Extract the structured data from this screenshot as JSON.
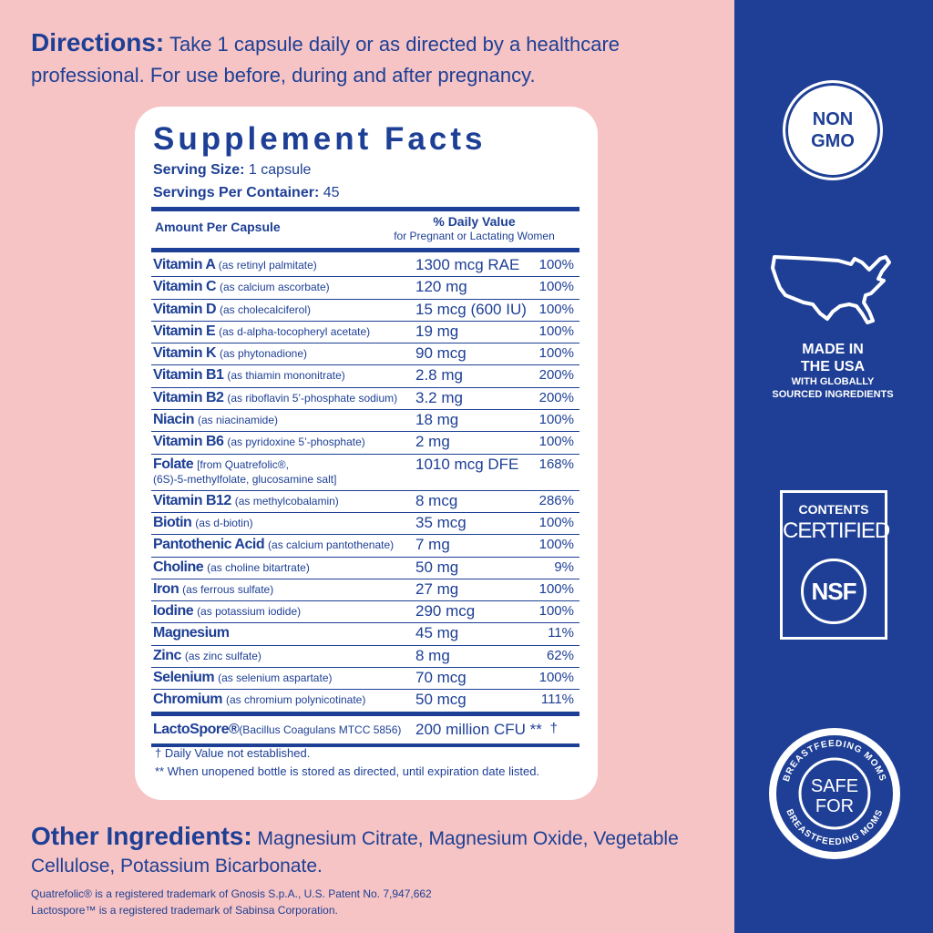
{
  "directions": {
    "heading": "Directions:",
    "text": " Take 1 capsule daily or as directed by a healthcare professional. For use before, during and after pregnancy."
  },
  "facts": {
    "title": "Supplement Facts",
    "serving_size_label": "Serving Size:",
    "serving_size_value": " 1 capsule",
    "servings_label": "Servings Per Container:",
    "servings_value": " 45",
    "amount_header": "Amount Per Capsule",
    "dv_header": "% Daily Value",
    "dv_subheader": "for Pregnant or Lactating Women",
    "rows": [
      {
        "name": "Vitamin A",
        "source": "(as retinyl palmitate)",
        "amount": "1300 mcg RAE",
        "dv": "100%"
      },
      {
        "name": "Vitamin C",
        "source": "(as calcium ascorbate)",
        "amount": "120 mg",
        "dv": "100%"
      },
      {
        "name": "Vitamin D",
        "source": "(as cholecalciferol)",
        "amount": "15 mcg (600 IU)",
        "dv": "100%"
      },
      {
        "name": "Vitamin E",
        "source": "(as d-alpha-tocopheryl acetate)",
        "amount": "19 mg",
        "dv": "100%"
      },
      {
        "name": "Vitamin K",
        "source": "(as phytonadione)",
        "amount": "90 mcg",
        "dv": "100%"
      },
      {
        "name": "Vitamin B1",
        "source": "(as thiamin mononitrate)",
        "amount": "2.8 mg",
        "dv": "200%"
      },
      {
        "name": "Vitamin B2",
        "source": "(as riboflavin 5’-phosphate sodium)",
        "amount": "3.2 mg",
        "dv": "200%"
      },
      {
        "name": "Niacin",
        "source": "(as niacinamide)",
        "amount": "18 mg",
        "dv": "100%"
      },
      {
        "name": "Vitamin B6",
        "source": "(as pyridoxine 5’-phosphate)",
        "amount": "2 mg",
        "dv": "100%"
      },
      {
        "name": "Folate",
        "source": "[from Quatrefolic®,",
        "source2": "(6S)-5-methylfolate, glucosamine salt]",
        "amount": "1010 mcg DFE",
        "dv": "168%"
      },
      {
        "name": "Vitamin B12",
        "source": "(as methylcobalamin)",
        "amount": "8 mcg",
        "dv": "286%"
      },
      {
        "name": "Biotin",
        "source": "(as d-biotin)",
        "amount": "35 mcg",
        "dv": "100%"
      },
      {
        "name": "Pantothenic Acid",
        "source": "(as calcium pantothenate)",
        "amount": "7 mg",
        "dv": "100%"
      },
      {
        "name": "Choline",
        "source": "(as choline bitartrate)",
        "amount": "50 mg",
        "dv": "9%"
      },
      {
        "name": "Iron",
        "source": "(as ferrous sulfate)",
        "amount": "27 mg",
        "dv": "100%"
      },
      {
        "name": "Iodine",
        "source": "(as potassium iodide)",
        "amount": "290 mcg",
        "dv": "100%"
      },
      {
        "name": "Magnesium",
        "source": "",
        "amount": "45 mg",
        "dv": "11%"
      },
      {
        "name": "Zinc",
        "source": "(as zinc sulfate)",
        "amount": "8 mg",
        "dv": "62%"
      },
      {
        "name": "Selenium",
        "source": "(as selenium aspartate)",
        "amount": "70 mcg",
        "dv": "100%"
      },
      {
        "name": "Chromium",
        "source": "(as chromium polynicotinate)",
        "amount": "50 mcg",
        "dv": "111%"
      }
    ],
    "lacto": {
      "name": "LactoSpore®",
      "source": "(Bacillus Coagulans MTCC 5856)",
      "amount": "200 million CFU **",
      "dv": "†"
    },
    "footnote1": "† Daily Value not established.",
    "footnote2": "** When unopened bottle is stored as directed, until expiration date listed."
  },
  "other": {
    "heading": "Other Ingredients:",
    "text": " Magnesium Citrate, Magnesium Oxide, Vegetable Cellulose, Potassium Bicarbonate."
  },
  "trademarks": {
    "line1": "Quatrefolic® is a registered trademark of Gnosis S.p.A., U.S. Patent No. 7,947,662",
    "line2": "Lactospore™ is a registered trademark of Sabinsa Corporation."
  },
  "badges": {
    "nongmo_1": "NON",
    "nongmo_2": "GMO",
    "usa_1": "MADE IN",
    "usa_2": "THE USA",
    "usa_3": "WITH GLOBALLY",
    "usa_4": "SOURCED INGREDIENTS",
    "nsf_1": "CONTENTS",
    "nsf_2": "CERTIFIED",
    "nsf_3": "NSF",
    "bf_center_1": "SAFE",
    "bf_center_2": "FOR",
    "bf_ring": "BREASTFEEDING MOMS"
  },
  "colors": {
    "pink": "#f6c4c4",
    "navy": "#1e3f95",
    "white": "#ffffff"
  }
}
